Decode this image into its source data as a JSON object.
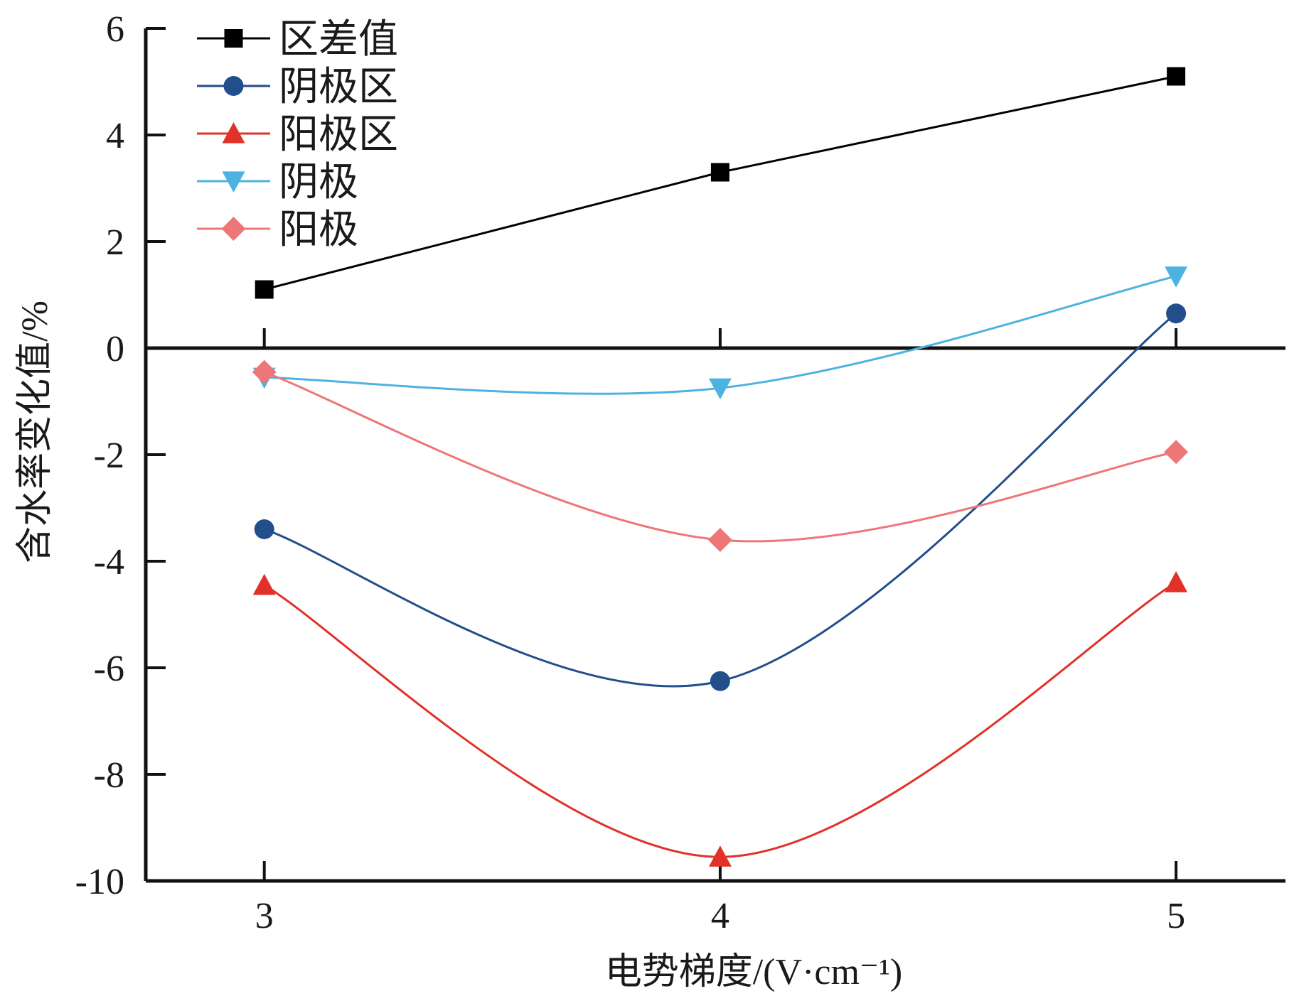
{
  "chart_data": {
    "type": "line",
    "title": "",
    "xlabel": "电势梯度/(V·cm⁻¹)",
    "ylabel": "含水率变化值/%",
    "x": [
      3,
      4,
      5
    ],
    "x_tick_labels": [
      "3",
      "4",
      "5"
    ],
    "xlim": [
      2.74,
      5.24
    ],
    "ylim": [
      -10,
      6
    ],
    "y_ticks": [
      6,
      4,
      2,
      0,
      -2,
      -4,
      -6,
      -8,
      -10
    ],
    "y_tick_labels": [
      "6",
      "4",
      "2",
      "0",
      "-2",
      "-4",
      "-6",
      "-8",
      "-10"
    ],
    "grid": false,
    "zero_line": true,
    "legend_position": "top-left",
    "series": [
      {
        "name": "区差值",
        "values": [
          1.1,
          3.3,
          5.1
        ],
        "color": "#000000",
        "marker": "square"
      },
      {
        "name": "阴极区",
        "values": [
          -3.4,
          -6.25,
          0.65
        ],
        "color": "#224e8c",
        "marker": "circle"
      },
      {
        "name": "阳极区",
        "values": [
          -4.45,
          -9.55,
          -4.4
        ],
        "color": "#e03228",
        "marker": "triangle-up"
      },
      {
        "name": "阴极",
        "values": [
          -0.55,
          -0.75,
          1.35
        ],
        "color": "#4cb3e0",
        "marker": "triangle-down"
      },
      {
        "name": "阳极",
        "values": [
          -0.45,
          -3.6,
          -1.95
        ],
        "color": "#ee7678",
        "marker": "diamond"
      }
    ]
  }
}
